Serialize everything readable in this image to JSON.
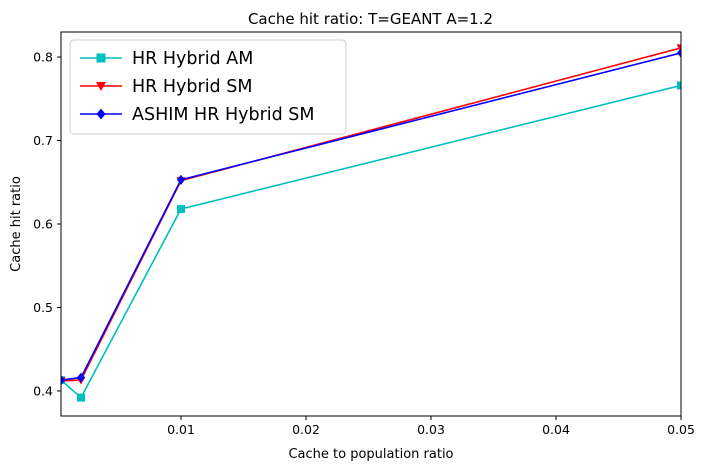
{
  "chart_data": {
    "type": "line",
    "title": "Cache hit ratio: T=GEANT A=1.2",
    "xlabel": "Cache to population ratio",
    "ylabel": "Cache hit ratio",
    "xlim": [
      0.0004,
      0.05
    ],
    "ylim": [
      0.37,
      0.83
    ],
    "xticks": [
      0.01,
      0.02,
      0.03,
      0.04,
      0.05
    ],
    "xtick_labels": [
      "0.01",
      "0.02",
      "0.03",
      "0.04",
      "0.05"
    ],
    "yticks": [
      0.4,
      0.5,
      0.6,
      0.7,
      0.8
    ],
    "ytick_labels": [
      "0.4",
      "0.5",
      "0.6",
      "0.7",
      "0.8"
    ],
    "x": [
      0.0004,
      0.002,
      0.01,
      0.05
    ],
    "grid": false,
    "legend_position": "top-left",
    "series": [
      {
        "name": "HR Hybrid AM",
        "values": [
          0.413,
          0.392,
          0.618,
          0.766
        ],
        "color": "#00bfbf",
        "marker": "square"
      },
      {
        "name": "HR Hybrid SM",
        "values": [
          0.412,
          0.413,
          0.652,
          0.811
        ],
        "color": "#ff0000",
        "marker": "triangle-down"
      },
      {
        "name": "ASHIM HR Hybrid SM",
        "values": [
          0.413,
          0.416,
          0.653,
          0.805
        ],
        "color": "#0000ff",
        "marker": "diamond"
      }
    ]
  }
}
